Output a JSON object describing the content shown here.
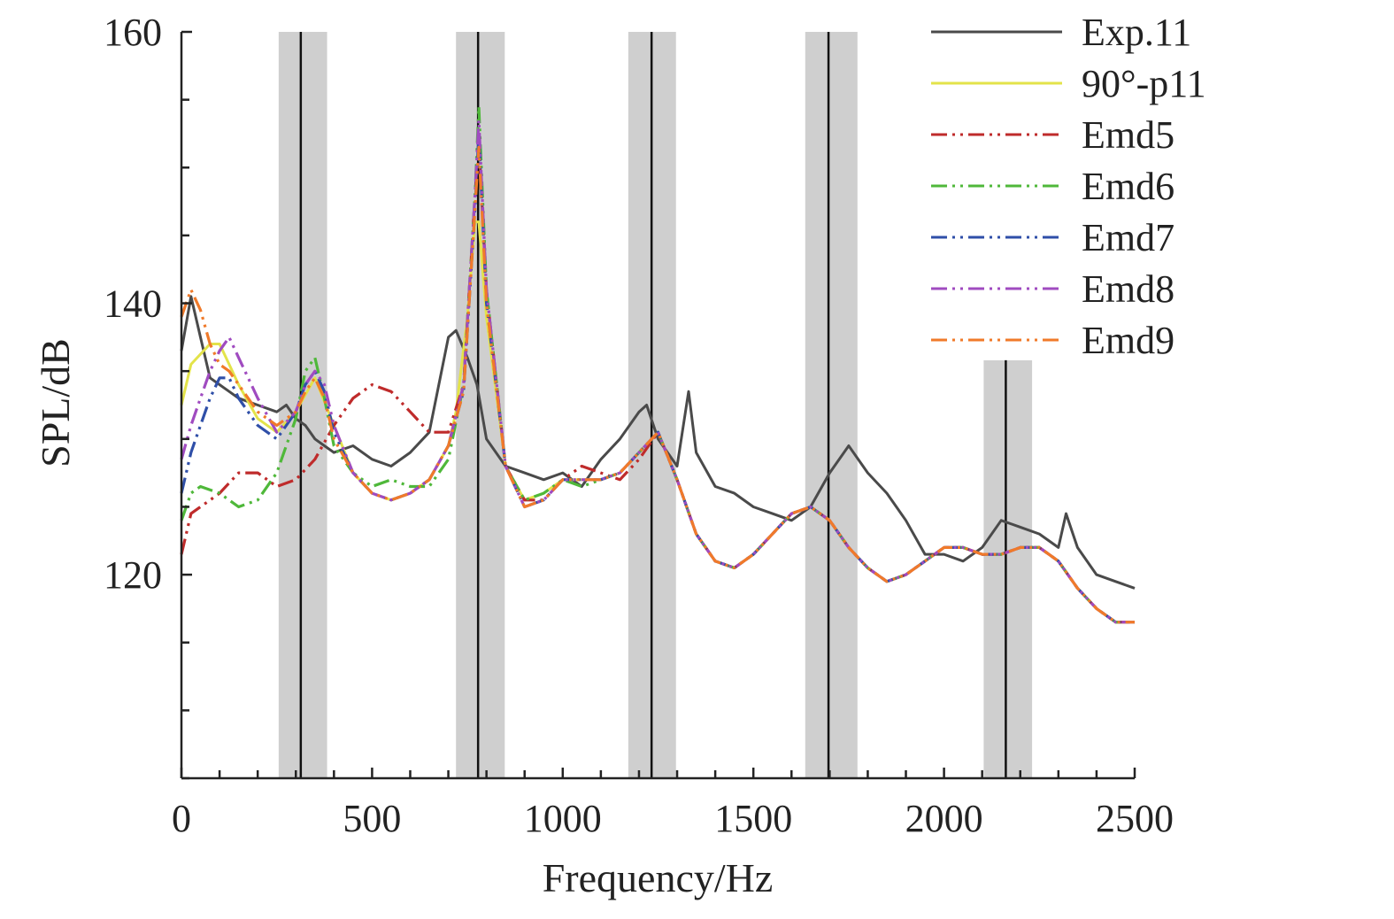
{
  "chart_data": {
    "type": "line",
    "title": "",
    "xlabel": "Frequency/Hz",
    "ylabel": "SPL/dB",
    "xlim": [
      0,
      2500
    ],
    "ylim": [
      105,
      160
    ],
    "x_ticks": [
      0,
      500,
      1000,
      1500,
      2000,
      2500
    ],
    "x_tick_labels": [
      "0",
      "500",
      "1000",
      "1500",
      "2000",
      "2500"
    ],
    "y_ticks": [
      120,
      140,
      160
    ],
    "y_tick_labels": [
      "120",
      "140",
      "160"
    ],
    "y_minor_step": 5,
    "x_minor_step": 100,
    "grid": false,
    "legend_position": "top-right",
    "shaded_bands": [
      {
        "from": 255,
        "to": 382,
        "center": 313,
        "ymax": 160
      },
      {
        "from": 720,
        "to": 848,
        "center": 778,
        "ymax": 160
      },
      {
        "from": 1172,
        "to": 1297,
        "center": 1233,
        "ymax": 160
      },
      {
        "from": 1636,
        "to": 1773,
        "center": 1697,
        "ymax": 160
      },
      {
        "from": 2104,
        "to": 2231,
        "center": 2162,
        "ymax": 135.8
      }
    ],
    "series": [
      {
        "name": "Exp.11",
        "color": "#4a4a4a",
        "dash": "solid",
        "x": [
          0,
          25,
          50,
          75,
          100,
          150,
          200,
          250,
          275,
          300,
          325,
          350,
          375,
          400,
          450,
          500,
          550,
          600,
          650,
          700,
          720,
          750,
          775,
          800,
          850,
          900,
          950,
          1000,
          1050,
          1100,
          1150,
          1200,
          1220,
          1250,
          1300,
          1330,
          1350,
          1400,
          1450,
          1500,
          1550,
          1600,
          1650,
          1700,
          1750,
          1800,
          1850,
          1900,
          1950,
          2000,
          2050,
          2100,
          2150,
          2200,
          2250,
          2300,
          2320,
          2350,
          2400,
          2450,
          2500
        ],
        "y": [
          136.5,
          140.5,
          137.5,
          134.5,
          134.0,
          133.0,
          132.5,
          132.0,
          132.5,
          131.5,
          131.0,
          130.0,
          129.5,
          129.0,
          129.5,
          128.5,
          128.0,
          129.0,
          130.5,
          137.5,
          138.0,
          136.0,
          134.0,
          130.0,
          128.0,
          127.5,
          127.0,
          127.5,
          126.5,
          128.5,
          130.0,
          132.0,
          132.5,
          130.0,
          128.0,
          133.5,
          129.0,
          126.5,
          126.0,
          125.0,
          124.5,
          124.0,
          125.0,
          127.5,
          129.5,
          127.5,
          126.0,
          124.0,
          121.5,
          121.5,
          121.0,
          122.0,
          124.0,
          123.5,
          123.0,
          122.0,
          124.5,
          122.0,
          120.0,
          119.5,
          119.0
        ]
      },
      {
        "name": "90°-p11",
        "color": "#e3e34a",
        "dash": "solid",
        "x": [
          0,
          25,
          75,
          100,
          125,
          150,
          200,
          250,
          300,
          350,
          400,
          450,
          500,
          550,
          600,
          650,
          700,
          720,
          750,
          770,
          780,
          800,
          850,
          900,
          950,
          1000,
          1050,
          1100,
          1150,
          1200,
          1250,
          1300,
          1350,
          1400,
          1450,
          1500,
          1550,
          1600,
          1650,
          1700,
          1750,
          1800,
          1850,
          1900,
          1950,
          2000,
          2050,
          2100,
          2150,
          2200,
          2250,
          2300,
          2350,
          2400,
          2450,
          2500
        ],
        "y": [
          132.5,
          135.5,
          137.0,
          137.0,
          135.5,
          134.0,
          131.5,
          130.5,
          132.0,
          134.5,
          131.0,
          127.5,
          126.0,
          125.5,
          126.0,
          127.0,
          129.5,
          132.0,
          139.0,
          146.0,
          146.0,
          139.0,
          128.0,
          125.5,
          126.0,
          127.0,
          127.0,
          127.0,
          127.5,
          129.0,
          130.5,
          127.0,
          123.0,
          121.0,
          120.5,
          121.5,
          123.0,
          124.5,
          125.0,
          124.0,
          122.0,
          120.5,
          119.5,
          120.0,
          121.0,
          122.0,
          122.0,
          121.5,
          121.5,
          122.0,
          122.0,
          121.0,
          119.0,
          117.5,
          116.5,
          116.5
        ]
      },
      {
        "name": "Emd5",
        "color": "#bf2b2b",
        "dash": "dashdotdot",
        "x": [
          0,
          25,
          50,
          100,
          150,
          200,
          250,
          300,
          350,
          400,
          450,
          500,
          550,
          600,
          650,
          700,
          740,
          770,
          780,
          800,
          850,
          900,
          950,
          1000,
          1050,
          1100,
          1150,
          1200,
          1250,
          1300,
          1350,
          1400,
          1450,
          1500,
          1550,
          1600,
          1650,
          1700,
          1750,
          1800,
          1850,
          1900,
          1950,
          2000,
          2050,
          2100,
          2150,
          2200,
          2250,
          2300,
          2350,
          2400,
          2450,
          2500
        ],
        "y": [
          121.5,
          124.5,
          125.0,
          126.0,
          127.5,
          127.5,
          126.5,
          127.0,
          128.5,
          131.0,
          133.0,
          134.0,
          133.5,
          132.0,
          130.5,
          130.5,
          134.0,
          148.0,
          152.0,
          141.0,
          128.0,
          125.5,
          125.5,
          127.0,
          128.0,
          127.5,
          127.0,
          128.5,
          130.5,
          127.0,
          123.0,
          121.0,
          120.5,
          121.5,
          123.0,
          124.5,
          125.0,
          124.0,
          122.0,
          120.5,
          119.5,
          120.0,
          121.0,
          122.0,
          122.0,
          121.5,
          121.5,
          122.0,
          122.0,
          121.0,
          119.0,
          117.5,
          116.5,
          116.5
        ]
      },
      {
        "name": "Emd6",
        "color": "#4fb83a",
        "dash": "dashdotdot",
        "x": [
          0,
          25,
          50,
          100,
          150,
          200,
          250,
          300,
          325,
          350,
          375,
          400,
          450,
          500,
          550,
          600,
          650,
          700,
          740,
          770,
          780,
          800,
          850,
          900,
          950,
          1000,
          1050,
          1100,
          1150,
          1200,
          1250,
          1300,
          1350,
          1400,
          1450,
          1500,
          1550,
          1600,
          1650,
          1700,
          1750,
          1800,
          1850,
          1900,
          1950,
          2000,
          2050,
          2100,
          2150,
          2200,
          2250,
          2300,
          2350,
          2400,
          2450,
          2500
        ],
        "y": [
          124.0,
          126.0,
          126.5,
          126.0,
          125.0,
          125.5,
          127.5,
          131.5,
          135.0,
          136.0,
          133.0,
          129.5,
          127.5,
          126.5,
          127.0,
          126.5,
          126.5,
          128.5,
          134.0,
          148.0,
          154.5,
          141.0,
          128.0,
          125.5,
          126.0,
          127.0,
          126.5,
          127.0,
          127.5,
          129.0,
          130.5,
          127.0,
          123.0,
          121.0,
          120.5,
          121.5,
          123.0,
          124.5,
          125.0,
          124.0,
          122.0,
          120.5,
          119.5,
          120.0,
          121.0,
          122.0,
          122.0,
          121.5,
          121.5,
          122.0,
          122.0,
          121.0,
          119.0,
          117.5,
          116.5,
          116.5
        ]
      },
      {
        "name": "Emd7",
        "color": "#2f4fa8",
        "dash": "dashdotdot",
        "x": [
          0,
          25,
          50,
          75,
          100,
          125,
          150,
          200,
          250,
          300,
          325,
          350,
          375,
          400,
          450,
          500,
          550,
          600,
          650,
          700,
          740,
          770,
          780,
          800,
          850,
          900,
          950,
          1000,
          1050,
          1100,
          1150,
          1200,
          1250,
          1300,
          1350,
          1400,
          1450,
          1500,
          1550,
          1600,
          1650,
          1700,
          1750,
          1800,
          1850,
          1900,
          1950,
          2000,
          2050,
          2100,
          2150,
          2200,
          2250,
          2300,
          2350,
          2400,
          2450,
          2500
        ],
        "y": [
          126.0,
          129.0,
          131.0,
          133.0,
          134.5,
          134.5,
          133.0,
          131.0,
          130.0,
          132.0,
          134.0,
          135.0,
          133.5,
          130.5,
          127.5,
          126.0,
          125.5,
          126.0,
          127.0,
          129.5,
          133.5,
          147.0,
          152.5,
          140.0,
          128.0,
          125.0,
          125.5,
          127.0,
          127.0,
          127.0,
          127.5,
          129.0,
          130.5,
          127.0,
          123.0,
          121.0,
          120.5,
          121.5,
          123.0,
          124.5,
          125.0,
          124.0,
          122.0,
          120.5,
          119.5,
          120.0,
          121.0,
          122.0,
          122.0,
          121.5,
          121.5,
          122.0,
          122.0,
          121.0,
          119.0,
          117.5,
          116.5,
          116.5
        ]
      },
      {
        "name": "Emd8",
        "color": "#a04bc0",
        "dash": "dashdotdot",
        "x": [
          0,
          25,
          50,
          75,
          100,
          125,
          150,
          200,
          250,
          300,
          325,
          350,
          375,
          400,
          450,
          500,
          550,
          600,
          650,
          700,
          740,
          770,
          780,
          800,
          850,
          900,
          950,
          1000,
          1050,
          1100,
          1150,
          1200,
          1250,
          1300,
          1350,
          1400,
          1450,
          1500,
          1550,
          1600,
          1650,
          1700,
          1750,
          1800,
          1850,
          1900,
          1950,
          2000,
          2050,
          2100,
          2150,
          2200,
          2250,
          2300,
          2350,
          2400,
          2450,
          2500
        ],
        "y": [
          128.5,
          131.0,
          133.0,
          135.0,
          136.5,
          137.5,
          136.0,
          133.0,
          130.5,
          132.0,
          134.0,
          135.0,
          134.0,
          131.0,
          127.5,
          126.0,
          125.5,
          126.0,
          127.0,
          129.5,
          134.0,
          148.0,
          153.5,
          141.0,
          128.0,
          125.0,
          125.5,
          127.0,
          127.0,
          127.0,
          127.5,
          129.0,
          130.5,
          127.0,
          123.0,
          121.0,
          120.5,
          121.5,
          123.0,
          124.5,
          125.0,
          124.0,
          122.0,
          120.5,
          119.5,
          120.0,
          121.0,
          122.0,
          122.0,
          121.5,
          121.5,
          122.0,
          122.0,
          121.0,
          119.0,
          117.5,
          116.5,
          116.5
        ]
      },
      {
        "name": "Emd9",
        "color": "#f07a2a",
        "dash": "dashdotdot",
        "x": [
          0,
          25,
          50,
          75,
          100,
          125,
          150,
          200,
          250,
          300,
          325,
          350,
          375,
          400,
          450,
          500,
          550,
          600,
          650,
          700,
          740,
          770,
          780,
          800,
          850,
          900,
          950,
          1000,
          1050,
          1100,
          1150,
          1200,
          1250,
          1300,
          1350,
          1400,
          1450,
          1500,
          1550,
          1600,
          1650,
          1700,
          1750,
          1800,
          1850,
          1900,
          1950,
          2000,
          2050,
          2100,
          2150,
          2200,
          2250,
          2300,
          2350,
          2400,
          2450,
          2500
        ],
        "y": [
          139.0,
          141.0,
          139.5,
          137.0,
          135.5,
          135.0,
          134.0,
          132.0,
          131.0,
          132.0,
          133.5,
          134.5,
          133.0,
          130.0,
          127.5,
          126.0,
          125.5,
          126.0,
          127.0,
          129.5,
          133.5,
          147.0,
          151.5,
          140.0,
          128.0,
          125.0,
          125.5,
          127.0,
          127.0,
          127.0,
          127.5,
          129.0,
          130.5,
          127.0,
          123.0,
          121.0,
          120.5,
          121.5,
          123.0,
          124.5,
          125.0,
          124.0,
          122.0,
          120.5,
          119.5,
          120.0,
          121.0,
          122.0,
          122.0,
          121.5,
          121.5,
          122.0,
          122.0,
          121.0,
          119.0,
          117.5,
          116.5,
          116.5
        ]
      }
    ]
  }
}
